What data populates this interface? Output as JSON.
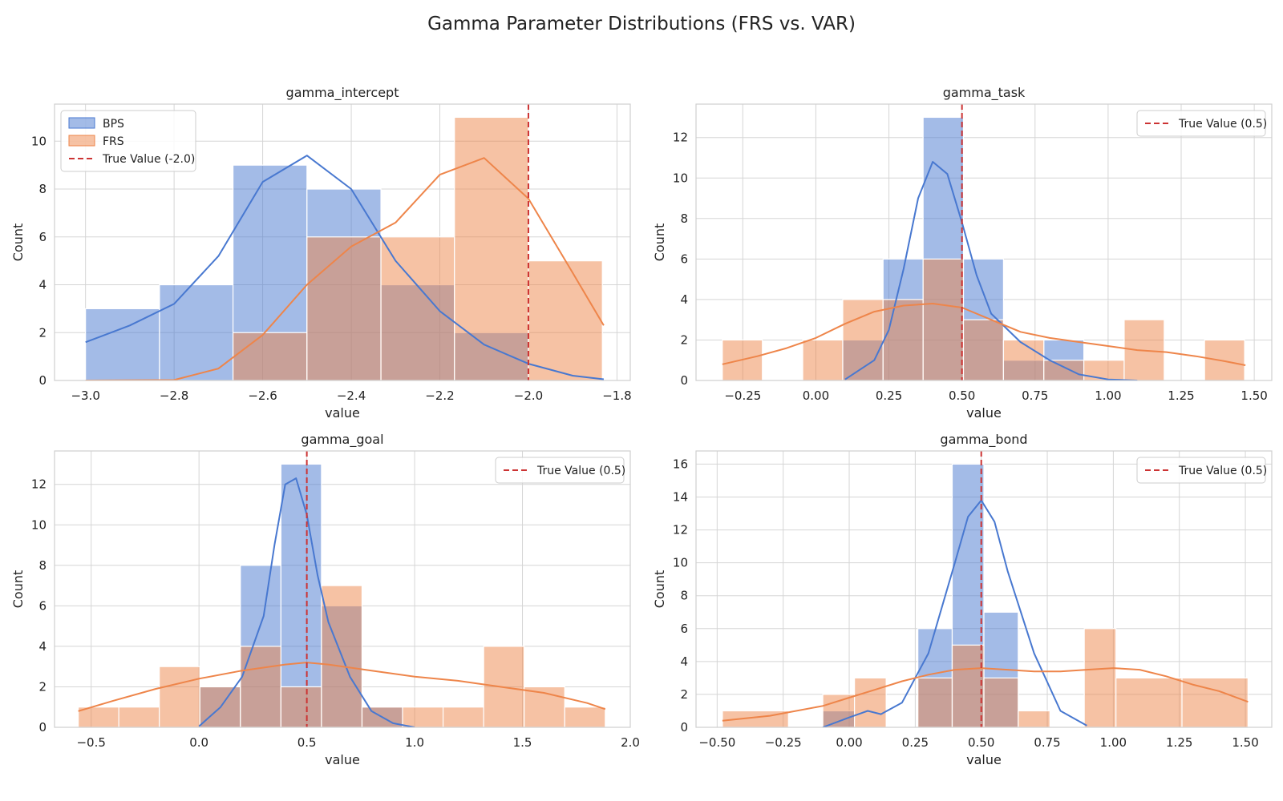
{
  "figure": {
    "title": "Gamma Parameter Distributions (FRS vs. VAR)"
  },
  "colors": {
    "bps": "#4878d0",
    "frs": "#ee854a",
    "true_line": "#cc3333",
    "grid": "#d5d5d5"
  },
  "chart_data": [
    {
      "type": "histogram",
      "title": "gamma_intercept",
      "xlabel": "value",
      "ylabel": "Count",
      "xlim": [
        -3.07,
        -1.77
      ],
      "ylim": [
        0,
        11.55
      ],
      "xticks": [
        -3.0,
        -2.8,
        -2.6,
        -2.4,
        -2.2,
        -2.0,
        -1.8
      ],
      "xtick_labels": [
        "−3.0",
        "−2.8",
        "−2.6",
        "−2.4",
        "−2.2",
        "−2.0",
        "−1.8"
      ],
      "yticks": [
        0,
        2,
        4,
        6,
        8,
        10
      ],
      "ytick_labels": [
        "0",
        "2",
        "4",
        "6",
        "8",
        "10"
      ],
      "bin_edges": [
        -3.0,
        -2.833,
        -2.667,
        -2.5,
        -2.333,
        -2.167,
        -2.0,
        -1.833
      ],
      "series": [
        {
          "name": "BPS",
          "color": "#4878d0",
          "counts": [
            3,
            4,
            9,
            8,
            4,
            2,
            0
          ],
          "kde": {
            "x": [
              -3.0,
              -2.9,
              -2.8,
              -2.7,
              -2.6,
              -2.5,
              -2.4,
              -2.3,
              -2.2,
              -2.1,
              -2.0,
              -1.9,
              -1.83
            ],
            "y": [
              1.6,
              2.3,
              3.2,
              5.2,
              8.3,
              9.4,
              8.0,
              5.0,
              2.9,
              1.5,
              0.7,
              0.2,
              0.05
            ]
          }
        },
        {
          "name": "FRS",
          "color": "#ee854a",
          "counts": [
            0,
            0,
            2,
            6,
            6,
            11,
            5
          ],
          "kde": {
            "x": [
              -3.0,
              -2.8,
              -2.7,
              -2.6,
              -2.5,
              -2.4,
              -2.3,
              -2.2,
              -2.1,
              -2.0,
              -1.9,
              -1.83
            ],
            "y": [
              0,
              0.02,
              0.5,
              1.9,
              4.0,
              5.6,
              6.6,
              8.6,
              9.3,
              7.6,
              4.5,
              2.3
            ]
          }
        }
      ],
      "true_value": {
        "x": -2.0,
        "label": "True Value (-2.0)"
      },
      "legend": {
        "position": "upper left",
        "entries": [
          "BPS",
          "FRS",
          "True Value (-2.0)"
        ]
      }
    },
    {
      "type": "histogram",
      "title": "gamma_task",
      "xlabel": "value",
      "ylabel": "Count",
      "xlim": [
        -0.41,
        1.56
      ],
      "ylim": [
        0,
        13.65
      ],
      "xticks": [
        -0.25,
        0.0,
        0.25,
        0.5,
        0.75,
        1.0,
        1.25,
        1.5
      ],
      "xtick_labels": [
        "−0.25",
        "0.00",
        "0.25",
        "0.50",
        "0.75",
        "1.00",
        "1.25",
        "1.50"
      ],
      "yticks": [
        0,
        2,
        4,
        6,
        8,
        10,
        12
      ],
      "ytick_labels": [
        "0",
        "2",
        "4",
        "6",
        "8",
        "10",
        "12"
      ],
      "bin_edges": [
        -0.32,
        -0.183,
        -0.045,
        0.092,
        0.23,
        0.367,
        0.505,
        0.642,
        0.78,
        0.917,
        1.055,
        1.192,
        1.33,
        1.467
      ],
      "series": [
        {
          "name": "BPS",
          "color": "#4878d0",
          "counts": [
            0,
            0,
            0,
            2,
            6,
            13,
            6,
            1,
            2,
            0,
            0,
            0,
            0
          ],
          "kde": {
            "x": [
              0.1,
              0.2,
              0.25,
              0.3,
              0.35,
              0.4,
              0.45,
              0.5,
              0.55,
              0.6,
              0.7,
              0.8,
              0.9,
              1.0,
              1.1
            ],
            "y": [
              0.05,
              1.0,
              2.5,
              5.5,
              9.0,
              10.8,
              10.2,
              7.8,
              5.2,
              3.3,
              1.9,
              1.0,
              0.3,
              0.05,
              0
            ]
          }
        },
        {
          "name": "FRS",
          "color": "#ee854a",
          "counts": [
            2,
            0,
            2,
            4,
            4,
            6,
            3,
            2,
            1,
            1,
            3,
            0,
            2
          ],
          "kde": {
            "x": [
              -0.32,
              -0.2,
              -0.1,
              0.0,
              0.1,
              0.2,
              0.3,
              0.4,
              0.5,
              0.6,
              0.7,
              0.8,
              0.9,
              1.0,
              1.1,
              1.2,
              1.3,
              1.4,
              1.47
            ],
            "y": [
              0.8,
              1.2,
              1.6,
              2.1,
              2.8,
              3.4,
              3.7,
              3.8,
              3.6,
              3.0,
              2.4,
              2.1,
              1.9,
              1.7,
              1.5,
              1.4,
              1.2,
              0.95,
              0.75
            ]
          }
        }
      ],
      "true_value": {
        "x": 0.5,
        "label": "True Value (0.5)"
      },
      "legend": {
        "position": "upper right",
        "entries": [
          "True Value (0.5)"
        ]
      }
    },
    {
      "type": "histogram",
      "title": "gamma_goal",
      "xlabel": "value",
      "ylabel": "Count",
      "xlim": [
        -0.67,
        2.0
      ],
      "ylim": [
        0,
        13.65
      ],
      "xticks": [
        -0.5,
        0.0,
        0.5,
        1.0,
        1.5,
        2.0
      ],
      "xtick_labels": [
        "−0.5",
        "0.0",
        "0.5",
        "1.0",
        "1.5",
        "2.0"
      ],
      "yticks": [
        0,
        2,
        4,
        6,
        8,
        10,
        12
      ],
      "ytick_labels": [
        "0",
        "2",
        "4",
        "6",
        "8",
        "10",
        "12"
      ],
      "bin_edges": [
        -0.56,
        -0.372,
        -0.184,
        0.004,
        0.192,
        0.38,
        0.568,
        0.756,
        0.944,
        1.132,
        1.32,
        1.508,
        1.696,
        1.884
      ],
      "series": [
        {
          "name": "BPS",
          "color": "#4878d0",
          "counts": [
            0,
            0,
            0,
            2,
            8,
            13,
            6,
            1,
            0,
            0,
            0,
            0,
            0
          ],
          "kde": {
            "x": [
              0.0,
              0.1,
              0.2,
              0.3,
              0.35,
              0.4,
              0.45,
              0.5,
              0.55,
              0.6,
              0.7,
              0.8,
              0.9,
              1.0
            ],
            "y": [
              0.05,
              1.0,
              2.5,
              5.5,
              9.0,
              12.0,
              12.3,
              10.5,
              7.5,
              5.2,
              2.5,
              0.8,
              0.2,
              0
            ]
          }
        },
        {
          "name": "FRS",
          "color": "#ee854a",
          "counts": [
            1,
            1,
            3,
            2,
            4,
            2,
            7,
            1,
            1,
            1,
            4,
            2,
            1
          ],
          "kde": {
            "x": [
              -0.56,
              -0.4,
              -0.2,
              0.0,
              0.2,
              0.4,
              0.5,
              0.6,
              0.8,
              1.0,
              1.2,
              1.4,
              1.6,
              1.8,
              1.884
            ],
            "y": [
              0.8,
              1.3,
              1.9,
              2.4,
              2.8,
              3.1,
              3.2,
              3.1,
              2.8,
              2.5,
              2.3,
              2.0,
              1.7,
              1.2,
              0.9
            ]
          }
        }
      ],
      "true_value": {
        "x": 0.5,
        "label": "True Value (0.5)"
      },
      "legend": {
        "position": "upper right",
        "entries": [
          "True Value (0.5)"
        ]
      }
    },
    {
      "type": "histogram",
      "title": "gamma_bond",
      "xlabel": "value",
      "ylabel": "Count",
      "xlim": [
        -0.58,
        1.6
      ],
      "ylim": [
        0,
        16.8
      ],
      "xticks": [
        -0.5,
        -0.25,
        0.0,
        0.25,
        0.5,
        0.75,
        1.0,
        1.25,
        1.5
      ],
      "xtick_labels": [
        "−0.50",
        "−0.25",
        "0.00",
        "0.25",
        "0.50",
        "0.75",
        "1.00",
        "1.25",
        "1.50"
      ],
      "yticks": [
        0,
        2,
        4,
        6,
        8,
        10,
        12,
        14,
        16
      ],
      "ytick_labels": [
        "0",
        "2",
        "4",
        "6",
        "8",
        "10",
        "12",
        "14",
        "16"
      ],
      "bin_edges": [
        -0.48,
        -0.23,
        -0.1,
        0.02,
        0.14,
        0.26,
        0.39,
        0.51,
        0.64,
        0.76,
        0.89,
        1.01,
        1.26,
        1.51
      ],
      "series": [
        {
          "name": "BPS",
          "color": "#4878d0",
          "counts": [
            0,
            0,
            1,
            0,
            0,
            6,
            16,
            7,
            0,
            0,
            0,
            0,
            0
          ],
          "kde": {
            "x": [
              -0.1,
              0.0,
              0.07,
              0.12,
              0.2,
              0.3,
              0.4,
              0.45,
              0.5,
              0.55,
              0.6,
              0.7,
              0.8,
              0.9
            ],
            "y": [
              0,
              0.6,
              1.0,
              0.8,
              1.5,
              4.5,
              10.0,
              12.8,
              13.8,
              12.5,
              9.5,
              4.5,
              1.0,
              0.1
            ]
          }
        },
        {
          "name": "FRS",
          "color": "#ee854a",
          "counts": [
            1,
            0,
            2,
            3,
            0,
            3,
            5,
            3,
            1,
            0,
            6,
            3,
            3
          ],
          "kde": {
            "x": [
              -0.48,
              -0.3,
              -0.1,
              0.0,
              0.1,
              0.2,
              0.3,
              0.4,
              0.5,
              0.6,
              0.7,
              0.8,
              0.9,
              1.0,
              1.1,
              1.2,
              1.3,
              1.4,
              1.51
            ],
            "y": [
              0.4,
              0.7,
              1.3,
              1.8,
              2.3,
              2.8,
              3.2,
              3.5,
              3.6,
              3.5,
              3.4,
              3.4,
              3.5,
              3.6,
              3.5,
              3.1,
              2.6,
              2.2,
              1.55
            ]
          }
        }
      ],
      "true_value": {
        "x": 0.5,
        "label": "True Value (0.5)"
      },
      "legend": {
        "position": "upper right",
        "entries": [
          "True Value (0.5)"
        ]
      }
    }
  ]
}
